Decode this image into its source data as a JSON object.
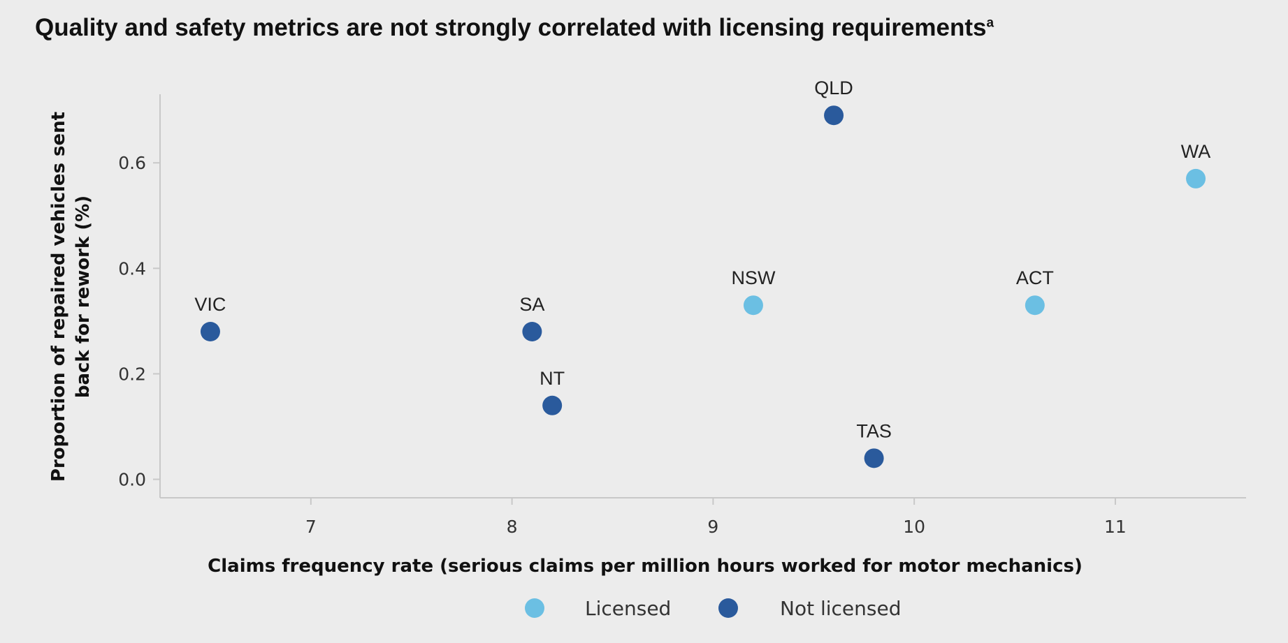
{
  "chart_data": {
    "type": "scatter",
    "title": "Quality and safety metrics are not strongly correlated with licensing requirements",
    "title_superscript": "a",
    "xlabel": "Claims frequency rate (serious claims per million hours worked for motor mechanics)",
    "ylabel_lines": [
      "Proportion of repaired vehicles sent",
      "back for rework (%)"
    ],
    "xlim": [
      6.25,
      11.65
    ],
    "ylim": [
      -0.035,
      0.73
    ],
    "xticks": [
      7,
      8,
      9,
      10,
      11
    ],
    "yticks": [
      0.0,
      0.2,
      0.4,
      0.6
    ],
    "ytick_labels": [
      "0.0",
      "0.2",
      "0.4",
      "0.6"
    ],
    "legend_position": "bottom",
    "series": [
      {
        "name": "Licensed",
        "color": "#6bbfe3"
      },
      {
        "name": "Not licensed",
        "color": "#2a5a9c"
      }
    ],
    "points": [
      {
        "label": "VIC",
        "x": 6.5,
        "y": 0.28,
        "series": "Not licensed"
      },
      {
        "label": "SA",
        "x": 8.1,
        "y": 0.28,
        "series": "Not licensed"
      },
      {
        "label": "NT",
        "x": 8.2,
        "y": 0.14,
        "series": "Not licensed"
      },
      {
        "label": "NSW",
        "x": 9.2,
        "y": 0.33,
        "series": "Licensed"
      },
      {
        "label": "QLD",
        "x": 9.6,
        "y": 0.69,
        "series": "Not licensed"
      },
      {
        "label": "TAS",
        "x": 9.8,
        "y": 0.04,
        "series": "Not licensed"
      },
      {
        "label": "ACT",
        "x": 10.6,
        "y": 0.33,
        "series": "Licensed"
      },
      {
        "label": "WA",
        "x": 11.4,
        "y": 0.57,
        "series": "Licensed"
      }
    ],
    "axis_color": "#c8c8c8"
  }
}
